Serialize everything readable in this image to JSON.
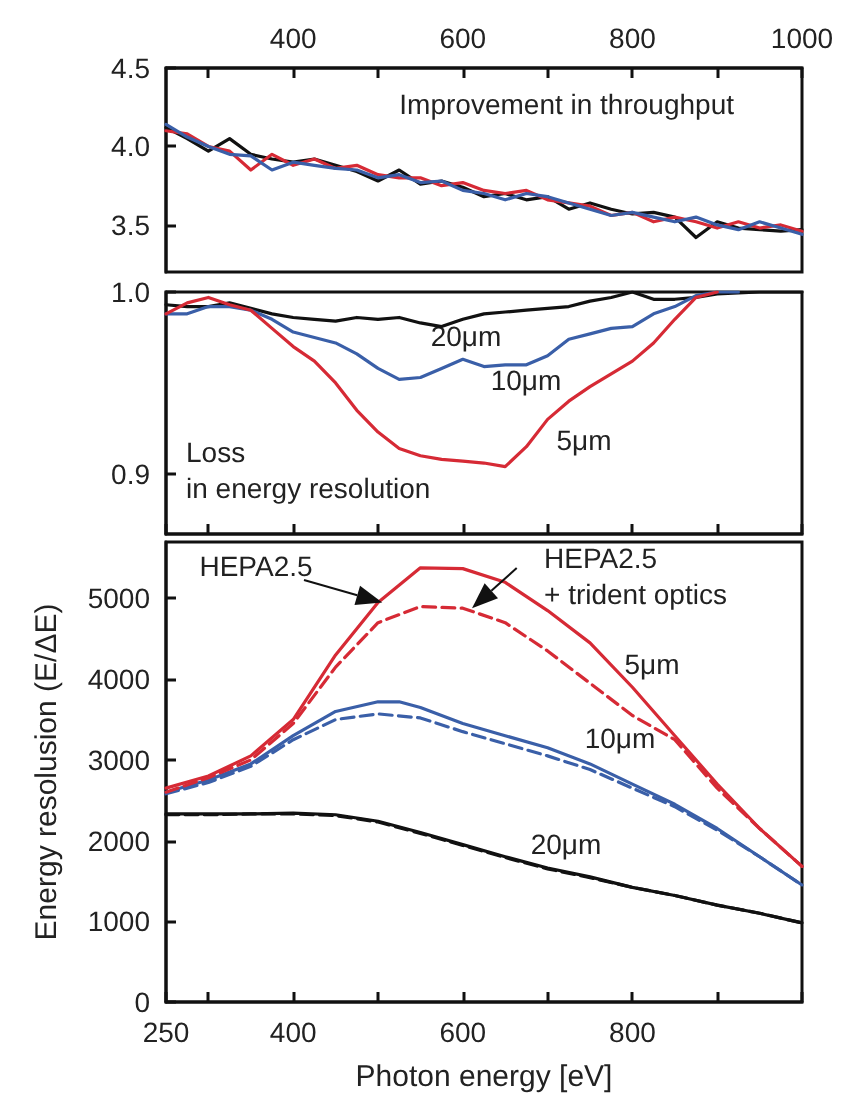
{
  "chart_data": [
    {
      "type": "line",
      "marker": "none",
      "annotations": [
        "Improvement in throughput"
      ],
      "xlim": [
        250,
        1000
      ],
      "xticks": [
        {
          "value": 300,
          "label": null
        },
        400,
        {
          "value": 500,
          "label": null
        },
        600,
        {
          "value": 700,
          "label": null
        },
        800,
        {
          "value": 900,
          "label": null
        },
        1000
      ],
      "ylim": [
        3.2,
        4.5
      ],
      "yticks": [
        {
          "value": 3.5,
          "label": "3.5"
        },
        {
          "value": 4,
          "label": "4.0"
        },
        {
          "value": 4.5,
          "label": "4.5"
        }
      ],
      "series": [
        {
          "color": "#111111",
          "x": [
            250,
            275,
            300,
            325,
            350,
            375,
            400,
            425,
            450,
            475,
            500,
            525,
            550,
            575,
            600,
            625,
            650,
            675,
            700,
            725,
            750,
            775,
            800,
            825,
            850,
            875,
            900,
            925,
            950,
            975,
            1000
          ],
          "values": [
            4.12,
            4.05,
            3.97,
            4.05,
            3.95,
            3.92,
            3.9,
            3.92,
            3.88,
            3.84,
            3.78,
            3.85,
            3.76,
            3.78,
            3.74,
            3.68,
            3.7,
            3.66,
            3.68,
            3.6,
            3.64,
            3.6,
            3.57,
            3.58,
            3.55,
            3.42,
            3.52,
            3.48,
            3.47,
            3.46,
            3.47
          ]
        },
        {
          "color": "#d62a35",
          "x": [
            250,
            275,
            300,
            325,
            350,
            375,
            400,
            425,
            450,
            475,
            500,
            525,
            550,
            575,
            600,
            625,
            650,
            675,
            700,
            725,
            750,
            775,
            800,
            825,
            850,
            875,
            900,
            925,
            950,
            975,
            1000
          ],
          "values": [
            4.1,
            4.08,
            4.0,
            3.97,
            3.85,
            3.95,
            3.88,
            3.92,
            3.86,
            3.88,
            3.82,
            3.8,
            3.8,
            3.75,
            3.77,
            3.72,
            3.7,
            3.72,
            3.66,
            3.64,
            3.62,
            3.56,
            3.58,
            3.52,
            3.55,
            3.52,
            3.48,
            3.52,
            3.48,
            3.5,
            3.46
          ]
        },
        {
          "color": "#3a5fa8",
          "x": [
            250,
            275,
            300,
            325,
            350,
            375,
            400,
            425,
            450,
            475,
            500,
            525,
            550,
            575,
            600,
            625,
            650,
            675,
            700,
            725,
            750,
            775,
            800,
            825,
            850,
            875,
            900,
            925,
            950,
            975,
            1000
          ],
          "values": [
            4.14,
            4.06,
            4.0,
            3.95,
            3.94,
            3.85,
            3.9,
            3.88,
            3.86,
            3.85,
            3.8,
            3.82,
            3.77,
            3.78,
            3.72,
            3.7,
            3.66,
            3.7,
            3.68,
            3.64,
            3.6,
            3.56,
            3.58,
            3.55,
            3.52,
            3.55,
            3.5,
            3.47,
            3.52,
            3.48,
            3.44
          ]
        }
      ]
    },
    {
      "type": "line",
      "marker": "none",
      "tick_labels": "y",
      "annotations": [
        "Loss\nin energy resolution",
        "20μm",
        "10μm",
        "5μm"
      ],
      "xlim": [
        250,
        1000
      ],
      "xticks": [
        250,
        {
          "value": 300,
          "label": null
        },
        400,
        {
          "value": 500,
          "label": null
        },
        600,
        {
          "value": 700,
          "label": null
        },
        800,
        {
          "value": 900,
          "label": null
        },
        1000
      ],
      "ylim": [
        0.867,
        1.0
      ],
      "yticks": [
        {
          "value": 0.9,
          "label": "0.9"
        },
        {
          "value": 1,
          "label": "1.0"
        }
      ],
      "series": [
        {
          "color": "#111111",
          "x": [
            250,
            275,
            300,
            325,
            350,
            375,
            400,
            425,
            450,
            475,
            500,
            525,
            550,
            575,
            600,
            625,
            650,
            675,
            700,
            725,
            750,
            775,
            800,
            825,
            850,
            875,
            900,
            950,
            1000
          ],
          "values": [
            0.993,
            0.992,
            0.992,
            0.994,
            0.991,
            0.988,
            0.986,
            0.985,
            0.984,
            0.986,
            0.985,
            0.986,
            0.983,
            0.981,
            0.985,
            0.988,
            0.989,
            0.99,
            0.991,
            0.992,
            0.995,
            0.997,
            1.0,
            0.996,
            0.996,
            0.997,
            0.999,
            1.0,
            1.0
          ]
        },
        {
          "color": "#3a5fa8",
          "x": [
            250,
            275,
            300,
            325,
            350,
            375,
            400,
            425,
            450,
            475,
            500,
            525,
            550,
            575,
            600,
            625,
            650,
            675,
            700,
            725,
            750,
            775,
            800,
            825,
            850,
            875,
            900,
            925
          ],
          "values": [
            0.988,
            0.988,
            0.992,
            0.992,
            0.99,
            0.985,
            0.978,
            0.975,
            0.972,
            0.966,
            0.958,
            0.952,
            0.953,
            0.958,
            0.963,
            0.959,
            0.96,
            0.96,
            0.965,
            0.974,
            0.977,
            0.98,
            0.981,
            0.988,
            0.992,
            0.998,
            1.0,
            1.0
          ]
        },
        {
          "color": "#d62a35",
          "x": [
            250,
            275,
            300,
            325,
            350,
            375,
            400,
            425,
            450,
            475,
            500,
            525,
            550,
            575,
            600,
            625,
            650,
            675,
            700,
            725,
            750,
            775,
            800,
            825,
            850,
            875,
            900
          ],
          "values": [
            0.988,
            0.994,
            0.997,
            0.993,
            0.99,
            0.98,
            0.97,
            0.962,
            0.95,
            0.935,
            0.923,
            0.914,
            0.91,
            0.908,
            0.907,
            0.906,
            0.904,
            0.915,
            0.93,
            0.94,
            0.948,
            0.955,
            0.962,
            0.972,
            0.985,
            0.997,
            1.0
          ]
        }
      ]
    },
    {
      "type": "line",
      "marker": "none",
      "xlabel": "Photon energy [eV]",
      "ylabel": "Energy resolusion (E/ΔE)",
      "annotations": [
        {
          "text": "HEPA2.5",
          "x": 505,
          "y": 4950
        },
        {
          "text": "HEPA2.5\n+ trident optics",
          "x": 610,
          "y": 4880
        },
        "5μm",
        "10μm",
        "20μm"
      ],
      "xlim": [
        250,
        1000
      ],
      "xticks": [
        250,
        {
          "value": 300,
          "label": null
        },
        400,
        {
          "value": 500,
          "label": null
        },
        600,
        {
          "value": 700,
          "label": null
        },
        800,
        {
          "value": 900,
          "label": null
        },
        {
          "value": 1000,
          "label": null
        }
      ],
      "ylim": [
        0,
        5700
      ],
      "yticks": [
        0,
        1000,
        2000,
        3000,
        4000,
        5000
      ],
      "series": [
        {
          "color": "#111111",
          "x": [
            250,
            300,
            350,
            400,
            450,
            500,
            550,
            600,
            650,
            700,
            750,
            800,
            850,
            900,
            950,
            1000
          ],
          "values": [
            2330,
            2330,
            2330,
            2340,
            2320,
            2240,
            2100,
            1950,
            1800,
            1660,
            1550,
            1420,
            1320,
            1200,
            1100,
            980
          ]
        },
        {
          "color": "#111111",
          "line_style": "dashed",
          "x": [
            250,
            300,
            350,
            400,
            450,
            500,
            550,
            600,
            650,
            700,
            750,
            800,
            850,
            900,
            950,
            1000
          ],
          "values": [
            2320,
            2320,
            2330,
            2330,
            2310,
            2230,
            2090,
            1940,
            1790,
            1650,
            1540,
            1420,
            1320,
            1200,
            1100,
            980
          ]
        },
        {
          "color": "#3a5fa8",
          "x": [
            250,
            300,
            350,
            400,
            450,
            500,
            525,
            550,
            600,
            650,
            700,
            750,
            800,
            850,
            900,
            950,
            1000
          ],
          "values": [
            2600,
            2750,
            2950,
            3300,
            3600,
            3720,
            3720,
            3650,
            3450,
            3300,
            3150,
            2950,
            2700,
            2450,
            2150,
            1800,
            1450
          ]
        },
        {
          "color": "#3a5fa8",
          "line_style": "dashed",
          "x": [
            250,
            300,
            350,
            400,
            450,
            500,
            550,
            600,
            650,
            700,
            750,
            800,
            850,
            900,
            950,
            1000
          ],
          "values": [
            2580,
            2720,
            2920,
            3250,
            3500,
            3570,
            3520,
            3350,
            3200,
            3050,
            2880,
            2650,
            2420,
            2130,
            1800,
            1450
          ]
        },
        {
          "color": "#d62a35",
          "x": [
            250,
            300,
            350,
            400,
            450,
            500,
            550,
            600,
            650,
            700,
            750,
            800,
            850,
            900,
            950,
            1000
          ],
          "values": [
            2650,
            2800,
            3050,
            3500,
            4300,
            4950,
            5380,
            5370,
            5200,
            4850,
            4450,
            3900,
            3300,
            2700,
            2150,
            1680
          ]
        },
        {
          "color": "#d62a35",
          "line_style": "dashed",
          "x": [
            250,
            300,
            350,
            400,
            450,
            500,
            550,
            600,
            650,
            700,
            750,
            800,
            850,
            900,
            950,
            1000
          ],
          "values": [
            2600,
            2780,
            3000,
            3450,
            4150,
            4700,
            4900,
            4880,
            4700,
            4350,
            3950,
            3550,
            3250,
            2650,
            2150,
            1680
          ]
        }
      ]
    }
  ]
}
